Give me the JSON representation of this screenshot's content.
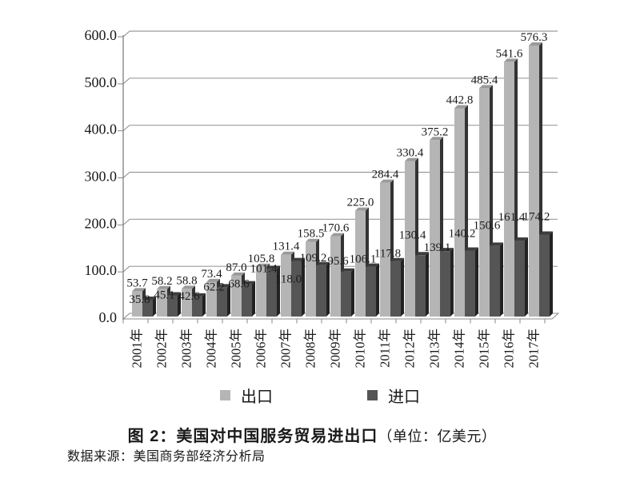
{
  "figure": {
    "title_bold": "图 2：美国对中国服务贸易进出口",
    "title_unit": "（单位：亿美元）",
    "source": "数据来源：美国商务部经济分析局"
  },
  "legend": {
    "export_label": "出口",
    "import_label": "进口"
  },
  "colors": {
    "export_front": "#b5b5b5",
    "export_side": "#333333",
    "export_top": "#9a9a9a",
    "import_front": "#555555",
    "import_side": "#222222",
    "import_top": "#3d3d3d",
    "gridline": "#9b9b9b",
    "axis": "#888888",
    "floor_fill": "#ffffff",
    "text": "#1a1a1a"
  },
  "chart_data": {
    "type": "bar",
    "title": "图 2：美国对中国服务贸易进出口（单位：亿美元）",
    "unit": "亿美元",
    "categories": [
      "2001年",
      "2002年",
      "2003年",
      "2004年",
      "2005年",
      "2006年",
      "2007年",
      "2008年",
      "2009年",
      "2010年",
      "2011年",
      "2012年",
      "2013年",
      "2014年",
      "2015年",
      "2016年",
      "2017年"
    ],
    "series": [
      {
        "name": "出口",
        "values": [
          53.7,
          58.2,
          58.8,
          73.4,
          87.0,
          105.8,
          131.4,
          158.5,
          170.6,
          225.0,
          284.4,
          330.4,
          375.2,
          442.8,
          485.4,
          541.6,
          576.3
        ]
      },
      {
        "name": "进口",
        "values": [
          35.8,
          45.1,
          42.6,
          62.2,
          68.6,
          101.4,
          118.0,
          109.2,
          95.6,
          106.1,
          117.8,
          130.4,
          139.1,
          140.2,
          150.6,
          161.4,
          174.2
        ]
      }
    ],
    "xlabel": "",
    "ylabel": "",
    "ylim": [
      0,
      600
    ],
    "ytick_step": 100,
    "ytick_labels": [
      "0.0",
      "100.0",
      "200.0",
      "300.0",
      "400.0",
      "500.0",
      "600.0"
    ],
    "grid": true,
    "legend_position": "bottom",
    "pseudo_3d": true,
    "label_decimals": 1,
    "import_label_dx": -10,
    "import_label_dy": [
      9,
      9,
      9,
      9,
      9,
      9,
      32,
      0,
      -4,
      0,
      0,
      -16,
      5,
      -12,
      -16,
      -20,
      -13
    ]
  }
}
